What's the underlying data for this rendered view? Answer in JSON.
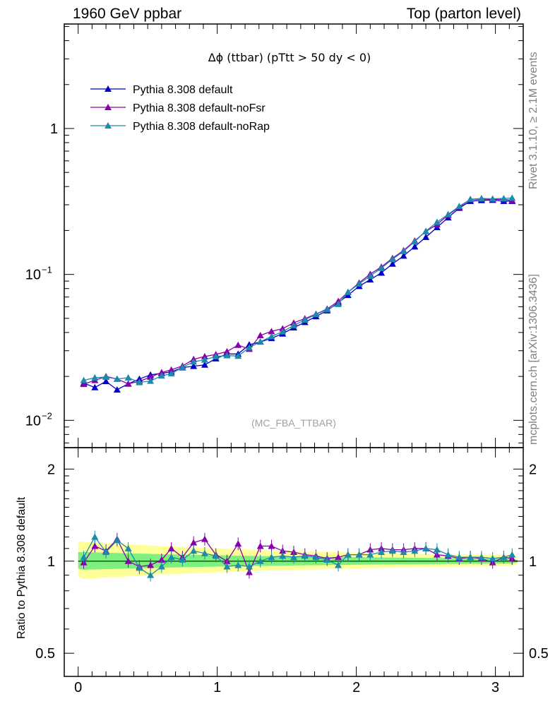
{
  "header": {
    "left": "1960 GeV ppbar",
    "right": "Top (parton level)"
  },
  "side_labels": {
    "rivet": "Rivet 3.1.10, ≥ 2.1M events",
    "mcplots": "mcplots.cern.ch [arXiv:1306.3436]"
  },
  "main_plot": {
    "title": "Δϕ (ttbar) (pTtt > 50 dy < 0)",
    "watermark": "(MC_FBA_TTBAR)"
  },
  "ratio_plot": {
    "ylabel": "Ratio to Pythia 8.308 default"
  },
  "colors": {
    "default": "#0000cc",
    "noFsr": "#8800aa",
    "noRap": "#1a8caa",
    "band_outer": "#ffff99",
    "band_inner": "#7ff07f"
  },
  "chart_data": [
    {
      "type": "line",
      "yscale": "log",
      "xlim": [
        -0.1,
        3.2
      ],
      "ylim": [
        0.0065,
        5.2
      ],
      "y_ticks": [
        {
          "value": 0.01,
          "label": "10",
          "exp": "−2"
        },
        {
          "value": 0.1,
          "label": "10",
          "exp": "−1"
        },
        {
          "value": 1,
          "label": "1",
          "exp": ""
        }
      ],
      "legend_position": "top-left",
      "x": [
        0.04,
        0.12,
        0.2,
        0.28,
        0.36,
        0.44,
        0.52,
        0.6,
        0.67,
        0.75,
        0.83,
        0.91,
        0.99,
        1.07,
        1.15,
        1.23,
        1.31,
        1.39,
        1.47,
        1.55,
        1.63,
        1.71,
        1.79,
        1.87,
        1.94,
        2.02,
        2.1,
        2.18,
        2.26,
        2.34,
        2.42,
        2.5,
        2.58,
        2.66,
        2.74,
        2.82,
        2.9,
        2.98,
        3.06,
        3.12
      ],
      "series": [
        {
          "name": "Pythia 8.308 default",
          "color": "#0000cc",
          "values": [
            0.018,
            0.0168,
            0.0185,
            0.0162,
            0.0178,
            0.0192,
            0.0205,
            0.021,
            0.0215,
            0.023,
            0.0235,
            0.024,
            0.0265,
            0.0285,
            0.0285,
            0.033,
            0.0345,
            0.0365,
            0.0392,
            0.0432,
            0.047,
            0.0515,
            0.0565,
            0.064,
            0.072,
            0.083,
            0.092,
            0.1025,
            0.118,
            0.134,
            0.155,
            0.18,
            0.21,
            0.245,
            0.285,
            0.318,
            0.322,
            0.323,
            0.318,
            0.318
          ]
        },
        {
          "name": "Pythia 8.308 default-noFsr",
          "color": "#8800aa",
          "values": [
            0.0177,
            0.0188,
            0.02,
            0.0192,
            0.0178,
            0.0185,
            0.0198,
            0.0213,
            0.0222,
            0.0236,
            0.0262,
            0.0274,
            0.0283,
            0.0296,
            0.0328,
            0.0308,
            0.0382,
            0.0407,
            0.0425,
            0.0466,
            0.0498,
            0.0535,
            0.058,
            0.0655,
            0.0755,
            0.0875,
            0.1005,
            0.1125,
            0.129,
            0.146,
            0.17,
            0.197,
            0.22,
            0.255,
            0.29,
            0.327,
            0.328,
            0.327,
            0.327,
            0.322
          ]
        },
        {
          "name": "Pythia 8.308 default-noRap",
          "color": "#1a8caa",
          "values": [
            0.0188,
            0.0196,
            0.0198,
            0.0192,
            0.0196,
            0.0182,
            0.0186,
            0.0202,
            0.0209,
            0.0231,
            0.0252,
            0.026,
            0.0274,
            0.0278,
            0.0276,
            0.0315,
            0.0346,
            0.0376,
            0.0405,
            0.0447,
            0.0488,
            0.0532,
            0.0575,
            0.0625,
            0.0755,
            0.0862,
            0.0975,
            0.1105,
            0.127,
            0.144,
            0.168,
            0.198,
            0.228,
            0.258,
            0.293,
            0.327,
            0.332,
            0.33,
            0.332,
            0.334
          ]
        }
      ]
    },
    {
      "type": "line",
      "xlabel": "",
      "xlim": [
        -0.1,
        3.2
      ],
      "ylim": [
        0.42,
        2.35
      ],
      "x_ticks": [
        0,
        1,
        2,
        3
      ],
      "y_ticks": [
        0.5,
        1,
        2
      ],
      "x": [
        0.04,
        0.12,
        0.2,
        0.28,
        0.36,
        0.44,
        0.52,
        0.6,
        0.67,
        0.75,
        0.83,
        0.91,
        0.99,
        1.07,
        1.15,
        1.23,
        1.31,
        1.39,
        1.47,
        1.55,
        1.63,
        1.71,
        1.79,
        1.87,
        1.94,
        2.02,
        2.1,
        2.18,
        2.26,
        2.34,
        2.42,
        2.5,
        2.58,
        2.66,
        2.74,
        2.82,
        2.9,
        2.98,
        3.06,
        3.12
      ],
      "series": [
        {
          "name": "Pythia 8.308 default-noFsr",
          "color": "#8800aa",
          "values": [
            0.99,
            1.12,
            1.08,
            1.18,
            1.0,
            0.96,
            0.97,
            1.01,
            1.1,
            1.03,
            1.15,
            1.18,
            1.05,
            1.0,
            1.14,
            0.92,
            1.12,
            1.12,
            1.08,
            1.07,
            1.05,
            1.04,
            1.02,
            1.03,
            1.05,
            1.05,
            1.09,
            1.1,
            1.09,
            1.09,
            1.1,
            1.1,
            1.05,
            1.04,
            1.02,
            1.03,
            1.02,
            0.99,
            1.03,
            1.02
          ]
        },
        {
          "name": "Pythia 8.308 default-noRap",
          "color": "#1a8caa",
          "values": [
            1.03,
            1.2,
            1.07,
            1.17,
            1.1,
            0.95,
            0.9,
            0.96,
            1.03,
            1.01,
            1.08,
            1.06,
            1.04,
            0.96,
            0.97,
            0.96,
            1.0,
            1.03,
            1.04,
            1.03,
            1.04,
            1.03,
            1.01,
            0.97,
            1.05,
            1.05,
            1.05,
            1.07,
            1.08,
            1.07,
            1.08,
            1.1,
            1.09,
            1.05,
            1.03,
            1.03,
            1.03,
            1.02,
            1.03,
            1.05
          ]
        }
      ]
    }
  ]
}
